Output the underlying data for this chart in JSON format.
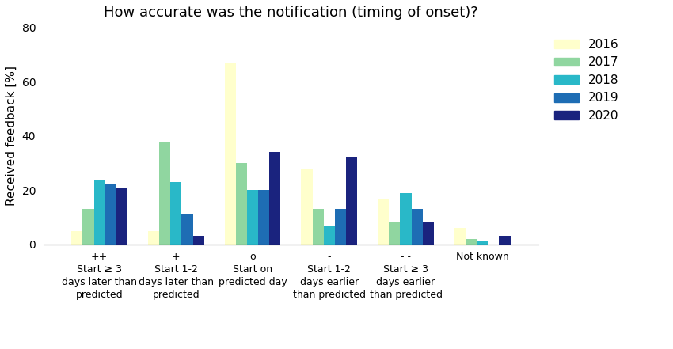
{
  "title": "How accurate was the notification (timing of onset)?",
  "ylabel": "Received feedback [%]",
  "ylim": [
    0,
    80
  ],
  "yticks": [
    0,
    20,
    40,
    60,
    80
  ],
  "years": [
    "2016",
    "2017",
    "2018",
    "2019",
    "2020"
  ],
  "colors": [
    "#ffffcc",
    "#90d6a0",
    "#29b8c8",
    "#1e6db4",
    "#1a237e"
  ],
  "data": {
    "2016": [
      5,
      5,
      67,
      28,
      17,
      6
    ],
    "2017": [
      13,
      38,
      30,
      13,
      8,
      2
    ],
    "2018": [
      24,
      23,
      20,
      7,
      19,
      1
    ],
    "2019": [
      22,
      11,
      20,
      13,
      13,
      0
    ],
    "2020": [
      21,
      3,
      34,
      32,
      8,
      3
    ]
  },
  "tick_symbols": [
    "++",
    "+",
    "o",
    "-",
    "- -",
    "Not known"
  ],
  "tick_lines": [
    "Start ≥ 3\ndays later than\npredicted",
    "Start 1-2\ndays later than\npredicted",
    "Start on\npredicted day",
    "Start 1-2\ndays earlier\nthan predicted",
    "Start ≥ 3\ndays earlier\nthan predicted",
    ""
  ],
  "legend_fontsize": 11,
  "title_fontsize": 13,
  "axis_fontsize": 11,
  "tick_fontsize": 9
}
